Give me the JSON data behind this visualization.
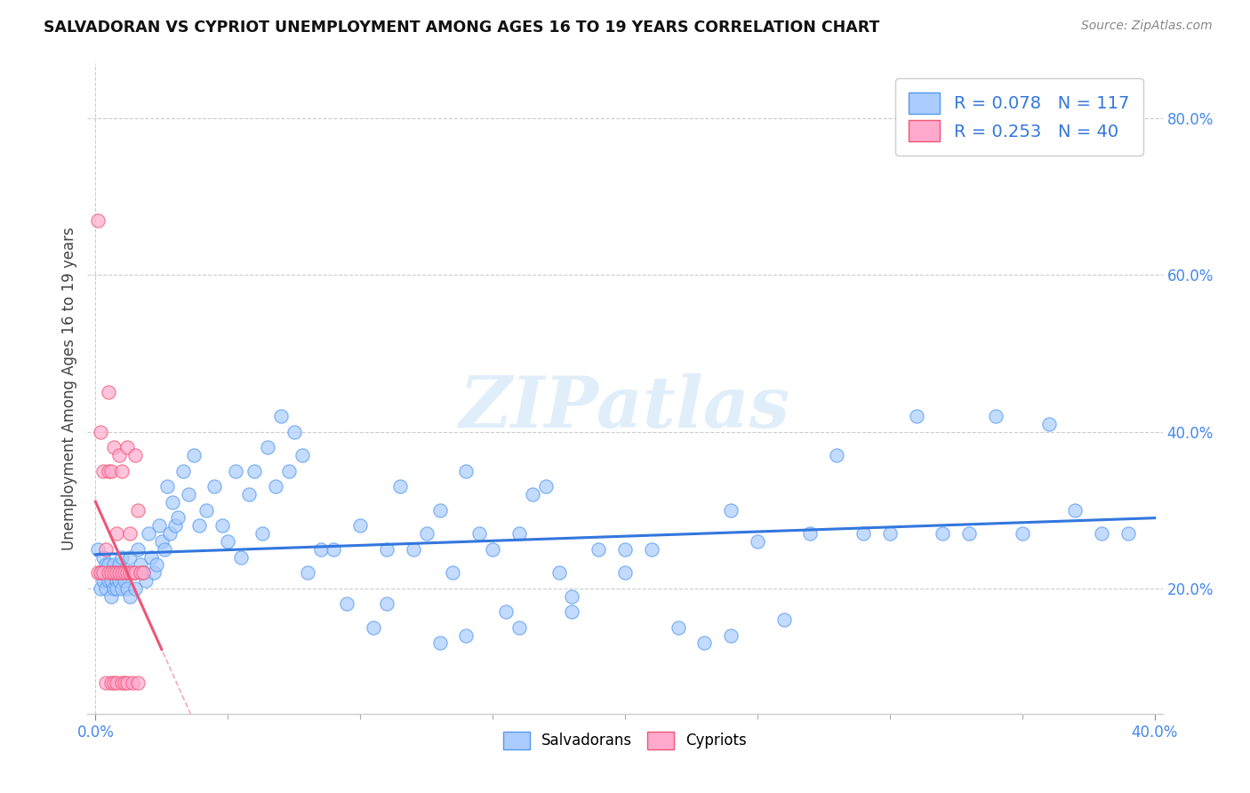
{
  "title": "SALVADORAN VS CYPRIOT UNEMPLOYMENT AMONG AGES 16 TO 19 YEARS CORRELATION CHART",
  "source": "Source: ZipAtlas.com",
  "ylabel": "Unemployment Among Ages 16 to 19 years",
  "xlim": [
    -0.003,
    0.403
  ],
  "ylim": [
    0.04,
    0.87
  ],
  "background_color": "#ffffff",
  "grid_color": "#cccccc",
  "salvadoran_color": "#aaccff",
  "cypriot_color": "#ffaacc",
  "salvadoran_edge_color": "#5599ee",
  "cypriot_edge_color": "#ee5577",
  "salvadoran_line_color": "#3377dd",
  "cypriot_line_color": "#ee5577",
  "r_salvadoran": 0.078,
  "n_salvadoran": 117,
  "r_cypriot": 0.253,
  "n_cypriot": 40,
  "watermark": "ZIPatlas",
  "salvadoran_x": [
    0.001,
    0.002,
    0.002,
    0.003,
    0.003,
    0.004,
    0.004,
    0.005,
    0.005,
    0.005,
    0.006,
    0.006,
    0.006,
    0.007,
    0.007,
    0.007,
    0.008,
    0.008,
    0.008,
    0.009,
    0.009,
    0.01,
    0.01,
    0.01,
    0.011,
    0.011,
    0.012,
    0.012,
    0.013,
    0.013,
    0.014,
    0.015,
    0.015,
    0.016,
    0.017,
    0.018,
    0.019,
    0.02,
    0.021,
    0.022,
    0.023,
    0.024,
    0.025,
    0.026,
    0.027,
    0.028,
    0.029,
    0.03,
    0.031,
    0.033,
    0.035,
    0.037,
    0.039,
    0.042,
    0.045,
    0.048,
    0.05,
    0.053,
    0.055,
    0.058,
    0.06,
    0.063,
    0.065,
    0.068,
    0.07,
    0.073,
    0.075,
    0.078,
    0.08,
    0.085,
    0.09,
    0.095,
    0.1,
    0.105,
    0.11,
    0.115,
    0.12,
    0.125,
    0.13,
    0.135,
    0.14,
    0.145,
    0.15,
    0.155,
    0.16,
    0.165,
    0.17,
    0.175,
    0.18,
    0.19,
    0.2,
    0.21,
    0.22,
    0.23,
    0.24,
    0.25,
    0.26,
    0.27,
    0.28,
    0.29,
    0.3,
    0.31,
    0.32,
    0.33,
    0.34,
    0.35,
    0.36,
    0.37,
    0.38,
    0.39,
    0.24,
    0.2,
    0.18,
    0.16,
    0.14,
    0.13,
    0.11
  ],
  "salvadoran_y": [
    0.25,
    0.22,
    0.2,
    0.24,
    0.21,
    0.23,
    0.2,
    0.22,
    0.21,
    0.23,
    0.19,
    0.22,
    0.21,
    0.2,
    0.23,
    0.22,
    0.21,
    0.22,
    0.2,
    0.21,
    0.23,
    0.22,
    0.2,
    0.24,
    0.22,
    0.21,
    0.2,
    0.22,
    0.19,
    0.24,
    0.22,
    0.22,
    0.2,
    0.25,
    0.23,
    0.22,
    0.21,
    0.27,
    0.24,
    0.22,
    0.23,
    0.28,
    0.26,
    0.25,
    0.33,
    0.27,
    0.31,
    0.28,
    0.29,
    0.35,
    0.32,
    0.37,
    0.28,
    0.3,
    0.33,
    0.28,
    0.26,
    0.35,
    0.24,
    0.32,
    0.35,
    0.27,
    0.38,
    0.33,
    0.42,
    0.35,
    0.4,
    0.37,
    0.22,
    0.25,
    0.25,
    0.18,
    0.28,
    0.15,
    0.25,
    0.33,
    0.25,
    0.27,
    0.3,
    0.22,
    0.35,
    0.27,
    0.25,
    0.17,
    0.27,
    0.32,
    0.33,
    0.22,
    0.19,
    0.25,
    0.22,
    0.25,
    0.15,
    0.13,
    0.14,
    0.26,
    0.16,
    0.27,
    0.37,
    0.27,
    0.27,
    0.42,
    0.27,
    0.27,
    0.42,
    0.27,
    0.41,
    0.3,
    0.27,
    0.27,
    0.3,
    0.25,
    0.17,
    0.15,
    0.14,
    0.13,
    0.18
  ],
  "cypriot_x": [
    0.001,
    0.001,
    0.002,
    0.002,
    0.003,
    0.003,
    0.004,
    0.004,
    0.005,
    0.005,
    0.005,
    0.006,
    0.006,
    0.006,
    0.007,
    0.007,
    0.007,
    0.008,
    0.008,
    0.008,
    0.009,
    0.009,
    0.01,
    0.01,
    0.01,
    0.011,
    0.011,
    0.012,
    0.012,
    0.012,
    0.013,
    0.013,
    0.014,
    0.014,
    0.015,
    0.015,
    0.016,
    0.016,
    0.017,
    0.018
  ],
  "cypriot_y": [
    0.67,
    0.22,
    0.4,
    0.22,
    0.22,
    0.35,
    0.25,
    0.08,
    0.22,
    0.35,
    0.45,
    0.22,
    0.08,
    0.35,
    0.22,
    0.08,
    0.38,
    0.22,
    0.27,
    0.08,
    0.22,
    0.37,
    0.22,
    0.08,
    0.35,
    0.22,
    0.08,
    0.22,
    0.08,
    0.38,
    0.22,
    0.27,
    0.22,
    0.08,
    0.37,
    0.22,
    0.08,
    0.3,
    0.22,
    0.22
  ]
}
